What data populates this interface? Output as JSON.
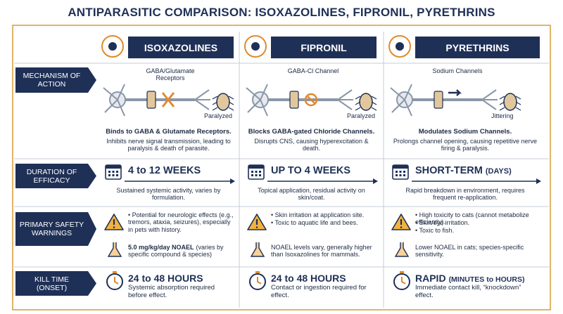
{
  "title": "ANTIPARASITIC COMPARISON: ISOXAZOLINES, FIPRONIL, PYRETHRINS",
  "rows": [
    "MECHANISM OF ACTION",
    "DURATION OF EFFICACY",
    "PRIMARY SAFETY WARNINGS",
    "KILL TIME (ONSET)"
  ],
  "columns": [
    {
      "name": "ISOXAZOLINES",
      "mechanism": {
        "diagram_labels": [
          "GABA/Glutamate Receptors",
          "Paralyzed"
        ],
        "heading": "Binds to GABA & Glutamate Receptors.",
        "text": "Inhibits nerve signal transmission, leading to paralysis & death of parasite."
      },
      "duration": {
        "headline": "4 to 12 WEEKS",
        "text": "Sustained systemic activity, varies by formulation."
      },
      "safety": {
        "bullets": [
          "Potential for neurologic effects (e.g., tremors, ataxia, seizures), especially in pets with history."
        ],
        "note_bold": "5.0 mg/kg/day NOAEL",
        "note": "(varies by specific compound & species)"
      },
      "kill_time": {
        "headline": "24 to 48 HOURS",
        "text": "Systemic absorption required before effect."
      }
    },
    {
      "name": "FIPRONIL",
      "mechanism": {
        "diagram_labels": [
          "GABA-Cl Channel",
          "Paralyzed"
        ],
        "heading": "Blocks GABA-gated Chloride Channels.",
        "text": "Disrupts CNS, causing hyperexcitation & death."
      },
      "duration": {
        "headline": "UP TO 4 WEEKS",
        "text": "Topical application, residual activity on skin/coat."
      },
      "safety": {
        "bullets": [
          "Skin irritation at application site.",
          "Toxic to aquatic life and bees."
        ],
        "note": "NOAEL levels vary, generally higher than Isoxazolines for mammals."
      },
      "kill_time": {
        "headline": "24 to 48 HOURS",
        "text": "Contact or ingestion required for effect."
      }
    },
    {
      "name": "PYRETHRINS",
      "mechanism": {
        "diagram_labels": [
          "Sodium Channels",
          "Jittering"
        ],
        "heading": "Modulates Sodium Channels.",
        "text": "Prolongs channel opening, causing repetitive nerve firing & paralysis."
      },
      "duration": {
        "headline": "SHORT-TERM",
        "headline_detail": "(DAYS)",
        "text": "Rapid breakdown in environment, requires frequent re-application."
      },
      "safety": {
        "bullets": [
          "High toxicity to cats (cannot metabolize efficiently).",
          "Skin/eye irritation.",
          "Toxic to fish."
        ],
        "note": "Lower NOAEL in cats; species-specific sensitivity."
      },
      "kill_time": {
        "headline": "RAPID",
        "headline_detail": "(MINUTES to HOURS)",
        "text": "Immediate contact kill, “knockdown” effect."
      }
    }
  ]
}
